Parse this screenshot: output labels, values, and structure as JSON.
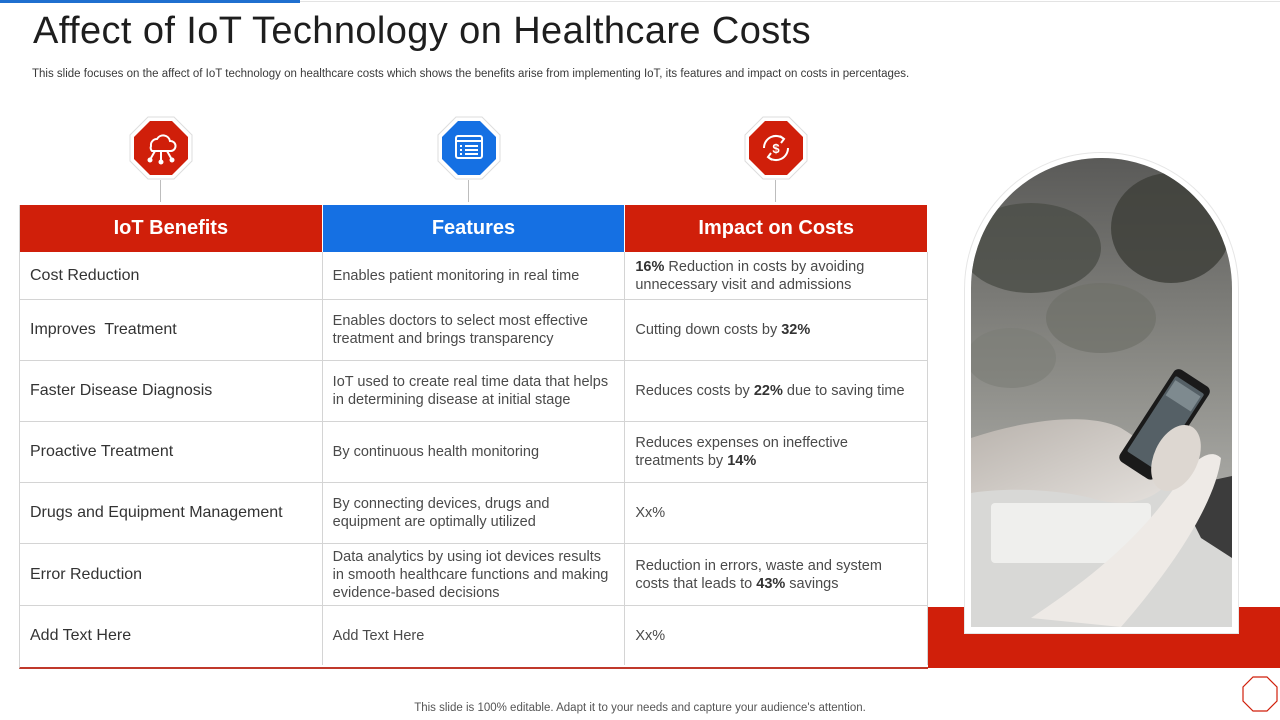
{
  "title": "Affect of IoT Technology on Healthcare Costs",
  "subtitle": "This slide focuses on the affect of IoT technology on healthcare costs which shows the benefits arise from implementing IoT, its features and impact on costs in percentages.",
  "icons": [
    "cloud-network-icon",
    "browser-list-icon",
    "dollar-cycle-icon"
  ],
  "colors": {
    "red": "#d01f0a",
    "blue": "#1570e3",
    "text": "#333333"
  },
  "table": {
    "headers": [
      "IoT Benefits",
      "Features",
      "Impact on Costs"
    ],
    "rows": [
      {
        "benefit": "Cost Reduction",
        "feature": "Enables patient monitoring in real time",
        "impact": {
          "pre": "",
          "bold": "16%",
          "post": " Reduction in costs by avoiding unnecessary visit and admissions"
        }
      },
      {
        "benefit": "Improves  Treatment",
        "feature": "Enables doctors to select most effective treatment and brings transparency",
        "impact": {
          "pre": "Cutting down costs by ",
          "bold": "32%",
          "post": ""
        }
      },
      {
        "benefit": "Faster Disease Diagnosis",
        "feature": "IoT used to create real time data that helps in determining disease at initial stage",
        "impact": {
          "pre": "Reduces costs by ",
          "bold": "22%",
          "post": " due to saving time"
        }
      },
      {
        "benefit": "Proactive Treatment",
        "feature": "By continuous health monitoring",
        "impact": {
          "pre": "Reduces expenses on ineffective treatments by ",
          "bold": "14%",
          "post": ""
        }
      },
      {
        "benefit": "Drugs and Equipment Management",
        "feature": "By connecting devices, drugs and equipment are optimally utilized",
        "impact": {
          "pre": "Xx%",
          "bold": "",
          "post": ""
        }
      },
      {
        "benefit": "Error Reduction",
        "feature": "Data analytics by using iot devices results in smooth healthcare functions and making evidence-based decisions",
        "impact": {
          "pre": "Reduction in errors, waste and system costs that leads to ",
          "bold": "43%",
          "post": " savings"
        }
      },
      {
        "benefit": "Add Text Here",
        "feature": "Add Text Here",
        "impact": {
          "pre": "Xx%",
          "bold": "",
          "post": ""
        }
      }
    ]
  },
  "photo_description_icon": "hand-smartphone-photo",
  "footer": "This slide is 100% editable. Adapt it to your needs and capture your audience's attention."
}
